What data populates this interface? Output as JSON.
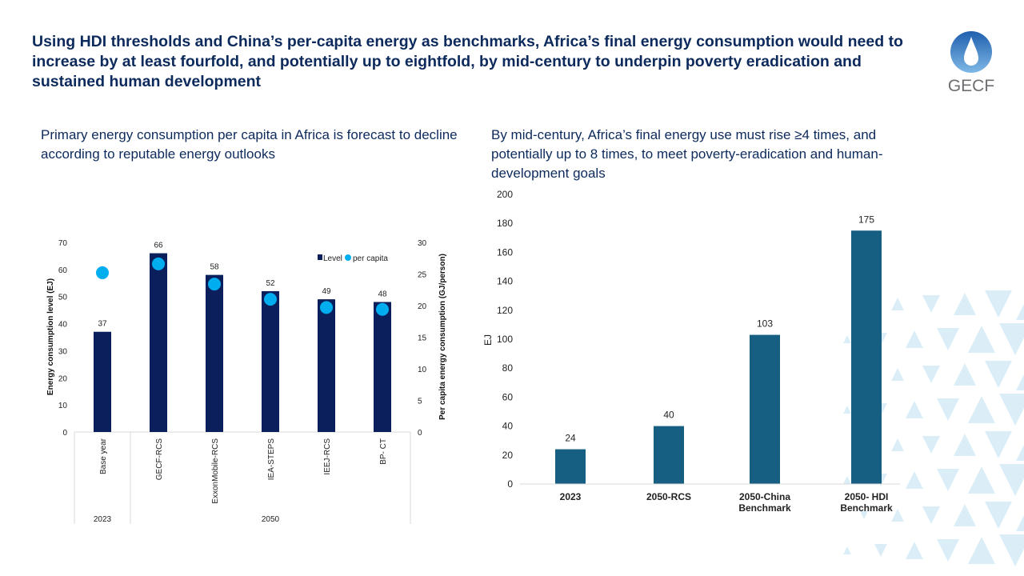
{
  "header": {
    "title": "Using HDI thresholds and China’s per-capita energy as benchmarks, Africa’s final energy consumption would need to increase by at least fourfold, and potentially up to eightfold, by mid-century to underpin poverty eradication and sustained human development",
    "logo_text": "GECF"
  },
  "colors": {
    "navy": "#0b1f5c",
    "cyan": "#00aeef",
    "teal": "#175f82",
    "text": "#0d2a5c",
    "pattern": "#dbeef8"
  },
  "chart_data": [
    {
      "type": "bar",
      "subtitle": "Primary energy consumption per capita in Africa is forecast to decline according to reputable energy outlooks",
      "categories": [
        "Base year",
        "GECF-RCS",
        "ExxonMobile-RCS",
        "IEA-STEPS",
        "IEEJ-RCS",
        "BP- CT"
      ],
      "groups": [
        {
          "label": "2023",
          "span": 1
        },
        {
          "label": "2050",
          "span": 5
        }
      ],
      "series": [
        {
          "name": "Level",
          "type": "bar",
          "axis": "left",
          "values": [
            37,
            66,
            58,
            52,
            49,
            48
          ]
        },
        {
          "name": "per capita",
          "type": "scatter",
          "axis": "right",
          "values": [
            25.2,
            26.6,
            23.4,
            21.0,
            19.7,
            19.4
          ]
        }
      ],
      "ylabel": "Energy consumption level (EJ)",
      "y2label": "Per capita energy consumption (GJ/person)",
      "ylim": [
        0,
        70
      ],
      "yticks": [
        0,
        10,
        20,
        30,
        40,
        50,
        60,
        70
      ],
      "y2lim": [
        0,
        30
      ],
      "y2ticks": [
        0,
        5,
        10,
        15,
        20,
        25,
        30
      ],
      "legend": "top-right",
      "grid": false
    },
    {
      "type": "bar",
      "subtitle": "By mid-century, Africa’s final energy use must rise ≥4 times, and potentially up to 8 times, to meet poverty-eradication and human-development goals",
      "categories": [
        [
          "2023"
        ],
        [
          "2050-RCS"
        ],
        [
          "2050-China",
          "Benchmark"
        ],
        [
          "2050- HDI",
          "Benchmark"
        ]
      ],
      "values": [
        24,
        40,
        103,
        175
      ],
      "ylabel": "EJ",
      "ylim": [
        0,
        200
      ],
      "yticks": [
        0,
        20,
        40,
        60,
        80,
        100,
        120,
        140,
        160,
        180,
        200
      ],
      "grid": false
    }
  ]
}
